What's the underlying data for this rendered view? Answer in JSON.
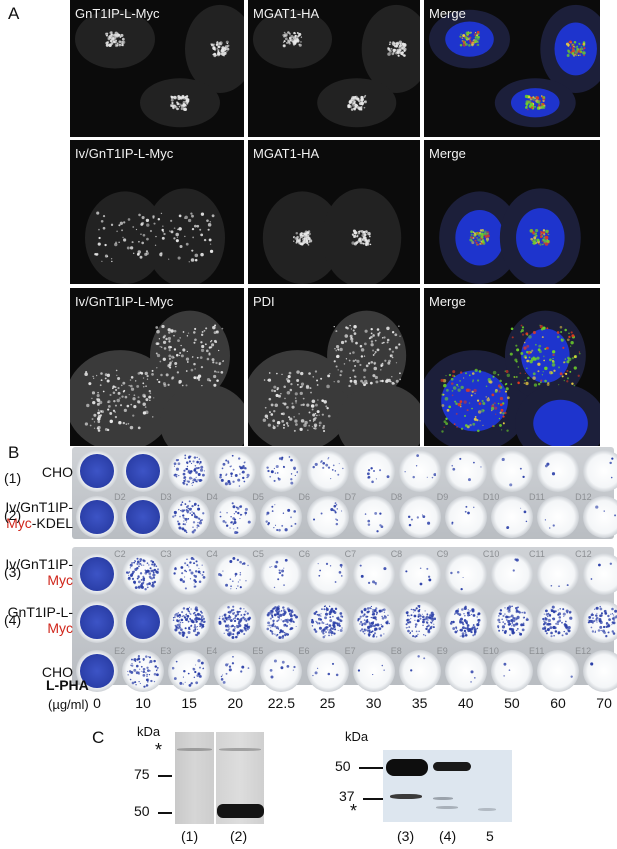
{
  "panel_a": {
    "letter": "A",
    "rows": [
      {
        "labels": [
          "GnT1IP-L-Myc",
          "MGAT1-HA",
          "Merge"
        ]
      },
      {
        "labels": [
          "Iv/GnT1IP-L-Myc",
          "MGAT1-HA",
          "Merge"
        ]
      },
      {
        "labels": [
          "Iv/GnT1IP-L-Myc",
          "PDI",
          "Merge"
        ]
      }
    ]
  },
  "panel_b": {
    "letter": "B",
    "rows": [
      {
        "num": "(1)",
        "name": "CHO",
        "name_red": "",
        "suffix": "",
        "density": [
          1.0,
          0.95,
          0.55,
          0.3,
          0.18,
          0.12,
          0.07,
          0.05,
          0.04,
          0.03,
          0.02,
          0.02
        ]
      },
      {
        "num": "(2)",
        "name": "Iv/GnT1IP-",
        "name_red": "Myc",
        "suffix": "-KDEL",
        "density": [
          0.95,
          0.9,
          0.5,
          0.25,
          0.15,
          0.1,
          0.06,
          0.05,
          0.04,
          0.03,
          0.02,
          0.02
        ]
      },
      {
        "num": "(3)",
        "name": "Iv/GnT1IP-",
        "name_red": "Myc",
        "suffix": "",
        "density": [
          1.0,
          0.7,
          0.3,
          0.18,
          0.1,
          0.07,
          0.05,
          0.04,
          0.03,
          0.02,
          0.02,
          0.02
        ]
      },
      {
        "num": "(4)",
        "name": "GnT1IP-L-",
        "name_red": "Myc",
        "suffix": "",
        "density": [
          1.0,
          0.95,
          0.85,
          0.8,
          0.75,
          0.75,
          0.7,
          0.65,
          0.6,
          0.6,
          0.55,
          0.5
        ]
      },
      {
        "num": "",
        "name": "CHO",
        "name_red": "",
        "suffix": "",
        "density": [
          0.95,
          0.45,
          0.2,
          0.1,
          0.06,
          0.04,
          0.03,
          0.02,
          0.02,
          0.02,
          0.01,
          0.01
        ]
      }
    ],
    "well_codes": [
      [
        "",
        "D2",
        "D3",
        "D4",
        "D5",
        "D6",
        "D7",
        "D8",
        "D9",
        "D10",
        "D11",
        "D12"
      ],
      [
        "",
        "C2",
        "C3",
        "C4",
        "C5",
        "C6",
        "C7",
        "C8",
        "C9",
        "C10",
        "C11",
        "C12"
      ],
      [
        "",
        "E2",
        "E3",
        "E4",
        "E5",
        "E6",
        "E7",
        "E8",
        "E9",
        "E10",
        "E11",
        "E12"
      ]
    ],
    "x_label": "L-PHA",
    "x_unit": "(µg/ml)",
    "concentrations": [
      "0",
      "10",
      "15",
      "20",
      "22.5",
      "25",
      "30",
      "35",
      "40",
      "50",
      "60",
      "70"
    ]
  },
  "panel_c": {
    "letter": "C",
    "left_blot": {
      "unit": "kDa",
      "star": "*",
      "markers": [
        "75",
        "50"
      ],
      "lanes": [
        "(1)",
        "(2)"
      ]
    },
    "right_blot": {
      "unit": "kDa",
      "star": "*",
      "markers": [
        "50",
        "37"
      ],
      "lanes": [
        "(3)",
        "(4)",
        "5"
      ]
    }
  },
  "colors": {
    "stain_blue": "#2b3fa8",
    "label_red": "#d0261b",
    "nuclei_blue": "#1f3cff",
    "golgi_green": "#6ccf2a",
    "golgi_red": "#e5391d"
  }
}
